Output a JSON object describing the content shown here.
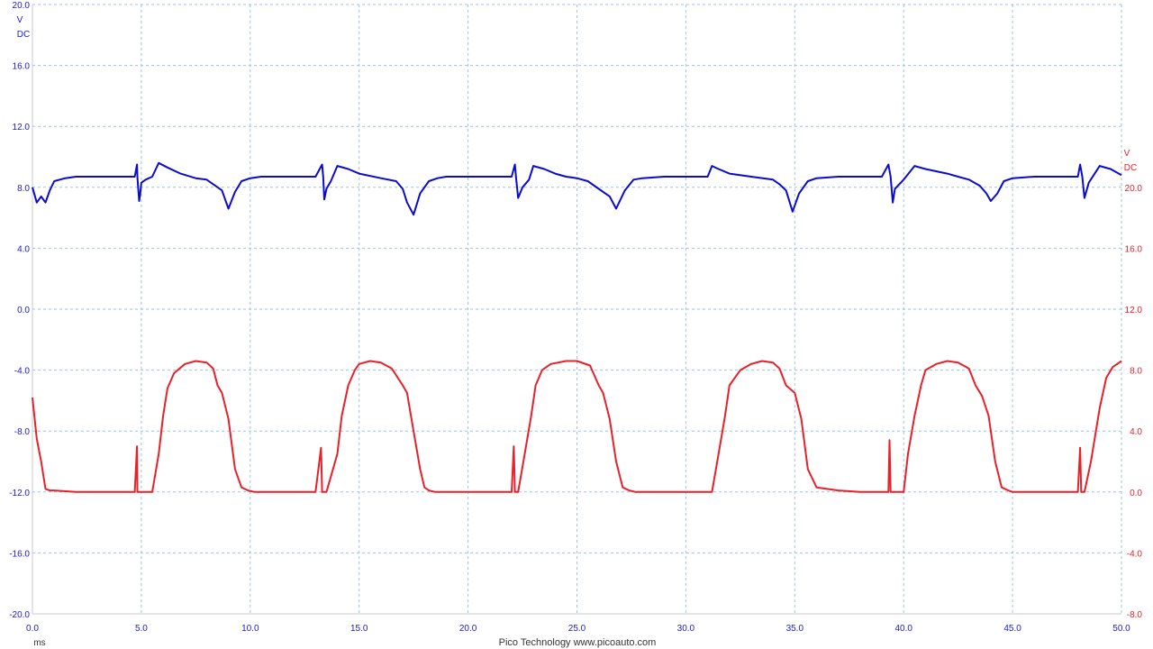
{
  "chart_data": {
    "type": "line",
    "grid": true,
    "xlim": [
      0,
      50
    ],
    "x_ticks": [
      "0.0",
      "5.0",
      "10.0",
      "15.0",
      "20.0",
      "25.0",
      "30.0",
      "35.0",
      "40.0",
      "45.0",
      "50.0"
    ],
    "x_unit": "ms",
    "footer": "Pico Technology  www.picoauto.com",
    "left_axis": {
      "unit_v": "V",
      "unit_dc": "DC",
      "color": "#1a1acc",
      "ylim": [
        -20,
        20
      ],
      "ticks": [
        "20.0",
        "16.0",
        "12.0",
        "8.0",
        "4.0",
        "0.0",
        "-4.0",
        "-8.0",
        "-12.0",
        "-16.0",
        "-20.0"
      ]
    },
    "right_axis": {
      "unit_v": "V",
      "unit_dc": "DC",
      "color": "#e8202a",
      "ylim": [
        -8,
        32
      ],
      "ticks": [
        "20.0",
        "16.0",
        "12.0",
        "8.0",
        "4.0",
        "0.0",
        "-4.0",
        "-8.0"
      ]
    },
    "series": [
      {
        "axis": "left",
        "color": "#0b0bd0",
        "x": [
          0,
          0.2,
          0.4,
          0.6,
          0.8,
          1.0,
          1.5,
          2.0,
          3.0,
          4.0,
          4.7,
          4.8,
          4.82,
          4.9,
          4.95,
          5.0,
          5.2,
          5.5,
          5.8,
          6.2,
          6.8,
          7.5,
          8.0,
          8.4,
          8.7,
          9.0,
          9.3,
          9.6,
          10.0,
          10.5,
          11.0,
          12.0,
          13.0,
          13.3,
          13.35,
          13.4,
          13.5,
          13.7,
          14.0,
          14.5,
          15.0,
          16.0,
          16.7,
          17.0,
          17.2,
          17.5,
          17.8,
          18.2,
          18.6,
          19.0,
          20.0,
          21.0,
          22.0,
          22.15,
          22.2,
          22.3,
          22.5,
          22.8,
          23.0,
          23.5,
          24.0,
          24.5,
          25.0,
          25.5,
          26.0,
          26.5,
          26.8,
          27.2,
          27.6,
          28.0,
          29.0,
          30.0,
          31.0,
          31.2,
          31.5,
          32.0,
          33.0,
          34.0,
          34.3,
          34.6,
          34.9,
          35.2,
          35.6,
          36.0,
          37.0,
          38.0,
          39.0,
          39.3,
          39.4,
          39.5,
          39.6,
          40.0,
          40.5,
          41.0,
          42.0,
          42.5,
          43.0,
          43.5,
          43.8,
          44.0,
          44.3,
          44.6,
          45.0,
          46.0,
          47.0,
          48.0,
          48.1,
          48.2,
          48.3,
          48.5,
          49.0,
          49.5,
          50.0
        ],
        "values": [
          8.0,
          7.0,
          7.4,
          7.0,
          7.8,
          8.4,
          8.6,
          8.7,
          8.7,
          8.7,
          8.7,
          9.5,
          8.7,
          7.1,
          7.6,
          8.3,
          8.5,
          8.7,
          9.6,
          9.3,
          8.9,
          8.6,
          8.5,
          8.1,
          7.8,
          6.6,
          7.7,
          8.4,
          8.6,
          8.7,
          8.7,
          8.7,
          8.7,
          9.5,
          8.7,
          7.2,
          7.9,
          8.4,
          9.4,
          9.2,
          8.9,
          8.6,
          8.4,
          7.9,
          7.0,
          6.2,
          7.6,
          8.4,
          8.6,
          8.7,
          8.7,
          8.7,
          8.7,
          9.5,
          8.7,
          7.3,
          8.0,
          8.5,
          9.4,
          9.2,
          8.9,
          8.7,
          8.6,
          8.4,
          7.9,
          7.4,
          6.6,
          7.8,
          8.5,
          8.6,
          8.7,
          8.7,
          8.7,
          9.4,
          9.2,
          8.9,
          8.7,
          8.5,
          8.2,
          7.8,
          6.4,
          7.6,
          8.4,
          8.6,
          8.7,
          8.7,
          8.7,
          9.5,
          8.7,
          7.0,
          7.9,
          8.5,
          9.4,
          9.2,
          8.9,
          8.7,
          8.5,
          8.1,
          7.6,
          7.1,
          7.6,
          8.4,
          8.6,
          8.7,
          8.7,
          8.7,
          9.5,
          8.7,
          7.3,
          8.3,
          9.4,
          9.2,
          8.8
        ]
      },
      {
        "axis": "right",
        "color": "#e8202a",
        "x": [
          0,
          0.2,
          0.4,
          0.6,
          0.8,
          1.0,
          2.0,
          3.0,
          4.0,
          4.7,
          4.8,
          4.82,
          4.9,
          5.0,
          5.5,
          5.8,
          6.0,
          6.2,
          6.5,
          7.0,
          7.5,
          8.0,
          8.3,
          8.5,
          8.7,
          9.0,
          9.3,
          9.6,
          9.9,
          10.2,
          10.5,
          11.0,
          12.0,
          13.0,
          13.25,
          13.3,
          13.35,
          13.5,
          14.0,
          14.2,
          14.5,
          14.8,
          15.0,
          15.5,
          16.0,
          16.5,
          17.0,
          17.2,
          17.5,
          17.8,
          18.0,
          18.2,
          18.5,
          19.0,
          20.0,
          21.0,
          22.0,
          22.1,
          22.15,
          22.2,
          22.3,
          22.6,
          22.9,
          23.1,
          23.4,
          23.8,
          24.5,
          25.0,
          25.6,
          26.0,
          26.2,
          26.5,
          26.8,
          27.1,
          27.4,
          27.7,
          28.0,
          29.0,
          30.0,
          31.0,
          31.2,
          31.5,
          31.8,
          32.0,
          32.5,
          33.0,
          33.5,
          34.0,
          34.3,
          34.6,
          35.0,
          35.3,
          35.6,
          36.0,
          37.0,
          38.0,
          39.0,
          39.3,
          39.35,
          39.4,
          39.5,
          40.0,
          40.2,
          40.5,
          40.8,
          41.0,
          41.5,
          42.0,
          42.5,
          43.0,
          43.3,
          43.6,
          43.9,
          44.2,
          44.5,
          44.8,
          45.0,
          46.0,
          47.0,
          48.0,
          48.1,
          48.15,
          48.2,
          48.3,
          48.6,
          49.0,
          49.3,
          49.6,
          50.0
        ],
        "values": [
          6.2,
          3.5,
          2.0,
          0.2,
          0.1,
          0.1,
          0.0,
          0.0,
          0.0,
          0.0,
          3.0,
          0.0,
          0.0,
          0.0,
          0.0,
          2.5,
          5.0,
          6.8,
          7.8,
          8.4,
          8.6,
          8.5,
          8.1,
          7.0,
          6.5,
          4.8,
          1.5,
          0.3,
          0.1,
          0.0,
          0.0,
          0.0,
          0.0,
          0.0,
          2.9,
          0.0,
          0.0,
          0.0,
          2.5,
          5.0,
          7.0,
          8.0,
          8.4,
          8.6,
          8.5,
          8.1,
          7.0,
          6.5,
          4.0,
          1.5,
          0.3,
          0.1,
          0.0,
          0.0,
          0.0,
          0.0,
          0.0,
          3.0,
          0.0,
          0.0,
          0.0,
          2.5,
          5.0,
          7.0,
          8.0,
          8.4,
          8.6,
          8.6,
          8.3,
          7.0,
          6.5,
          4.8,
          2.0,
          0.3,
          0.1,
          0.0,
          0.0,
          0.0,
          0.0,
          0.0,
          0.0,
          2.5,
          5.0,
          7.0,
          8.0,
          8.4,
          8.6,
          8.5,
          8.1,
          7.0,
          6.5,
          4.8,
          1.5,
          0.3,
          0.1,
          0.0,
          0.0,
          0.0,
          3.4,
          0.0,
          0.0,
          0.0,
          2.5,
          5.0,
          7.0,
          8.0,
          8.4,
          8.6,
          8.5,
          8.1,
          7.0,
          6.3,
          5.0,
          2.0,
          0.3,
          0.1,
          0.0,
          0.0,
          0.0,
          0.0,
          2.9,
          0.0,
          0.0,
          0.0,
          2.0,
          5.5,
          7.5,
          8.2,
          8.6
        ]
      }
    ]
  }
}
